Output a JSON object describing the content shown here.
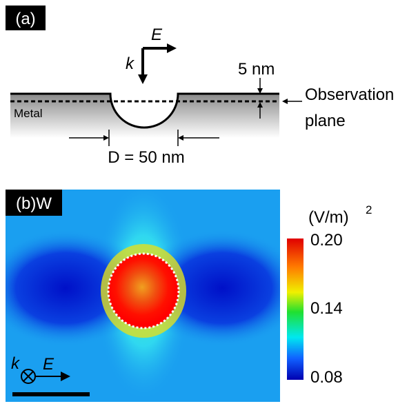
{
  "panel_a": {
    "label": "(a)",
    "field_label": "E",
    "wave_label": "k",
    "thickness": "5 nm",
    "observation": [
      "Observation",
      "plane"
    ],
    "material": "Metal",
    "diameter": "D = 50 nm"
  },
  "panel_b": {
    "label": "(b)W",
    "unit": "(V/m)",
    "unit_exponent": "2",
    "colorbar_ticks": [
      "0.20",
      "0.14",
      "0.08"
    ],
    "wave_label": "k",
    "field_label": "E"
  }
}
